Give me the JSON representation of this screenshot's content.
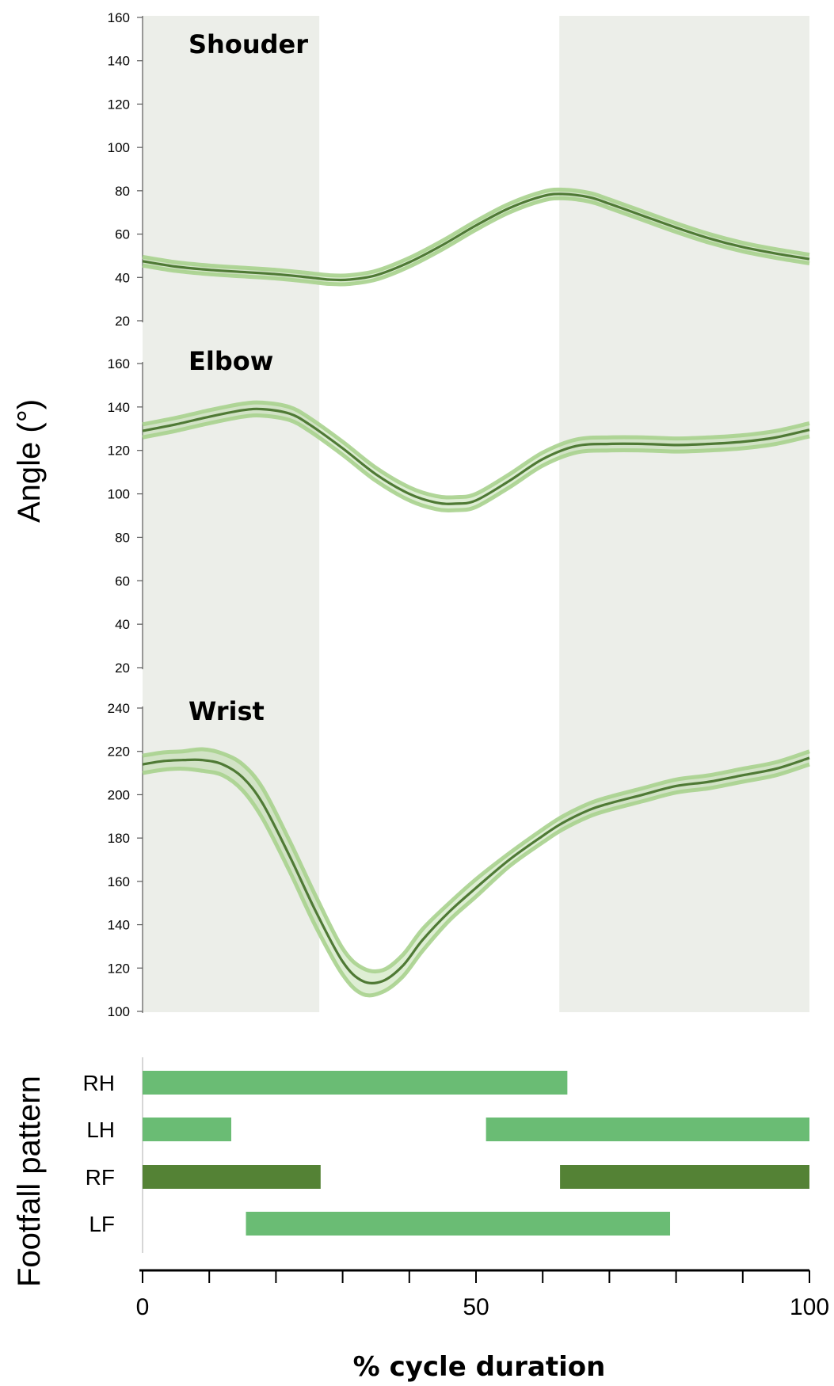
{
  "chart_data": {
    "type": "line",
    "xlabel": "% cycle duration",
    "ylabel": "Angle (°)",
    "xlim": [
      0,
      100
    ],
    "x_ticks": [
      "0",
      "50",
      "100"
    ],
    "shaded_phases": [
      [
        0,
        26.5
      ],
      [
        62.5,
        100
      ]
    ],
    "colors": {
      "line": "#4f7a35",
      "band": "#a9d18e",
      "shade": "#eceee9",
      "swing_dark": "#548235",
      "stance": "#6abc74"
    },
    "panels": [
      {
        "title": "Shouder",
        "ylim": [
          20,
          160
        ],
        "y_ticks": [
          "20",
          "40",
          "60",
          "80",
          "100",
          "120",
          "140",
          "160"
        ],
        "x": [
          0,
          5,
          10,
          15,
          20,
          25,
          28,
          31,
          35,
          40,
          45,
          50,
          55,
          60,
          63,
          67,
          70,
          75,
          80,
          85,
          90,
          95,
          100
        ],
        "mean": [
          47.5,
          45,
          43.5,
          42.5,
          41.5,
          40,
          39,
          39,
          41,
          47,
          55,
          64,
          72,
          77.5,
          78.5,
          77,
          74,
          68.5,
          63,
          58,
          54,
          51,
          48.5
        ],
        "sd": [
          2,
          2,
          2,
          2,
          2,
          2,
          2,
          2,
          2,
          2,
          2,
          2,
          2,
          2,
          2,
          2,
          2,
          2,
          2,
          2,
          2,
          2,
          2
        ]
      },
      {
        "title": "Elbow",
        "ylim": [
          20,
          160
        ],
        "y_ticks": [
          "20",
          "40",
          "60",
          "80",
          "100",
          "120",
          "140",
          "160"
        ],
        "x": [
          0,
          5,
          10,
          15,
          18,
          22,
          25,
          30,
          35,
          40,
          44,
          47,
          50,
          55,
          60,
          65,
          70,
          75,
          80,
          85,
          90,
          95,
          100
        ],
        "mean": [
          129,
          132,
          135.5,
          138.5,
          139,
          137,
          132,
          121,
          109,
          100,
          96,
          95.5,
          97,
          106,
          116,
          122,
          123,
          123,
          122.5,
          123,
          124,
          126,
          129.5
        ],
        "sd": [
          3,
          3,
          3,
          3,
          3,
          3,
          3,
          3,
          3,
          3,
          3,
          3,
          3,
          3,
          3,
          3,
          3,
          3,
          3,
          3,
          3,
          3,
          3
        ]
      },
      {
        "title": "Wrist",
        "ylim": [
          100,
          240
        ],
        "y_ticks": [
          "100",
          "120",
          "140",
          "160",
          "180",
          "200",
          "220",
          "240"
        ],
        "x": [
          0,
          3,
          6,
          9,
          12,
          15,
          18,
          22,
          26,
          30,
          33,
          36,
          39,
          42,
          46,
          50,
          55,
          60,
          63,
          67,
          70,
          75,
          80,
          85,
          90,
          95,
          100
        ],
        "mean": [
          214,
          215.5,
          216,
          216,
          214,
          208,
          196,
          172,
          146,
          123,
          114,
          114,
          121,
          133,
          146,
          157,
          170,
          181,
          187,
          193,
          196,
          200,
          204,
          206,
          209,
          212,
          217
        ],
        "sd": [
          4,
          4,
          4,
          5,
          5,
          6,
          7,
          7,
          7,
          6,
          6,
          5,
          5,
          5,
          4,
          4,
          3,
          3,
          3,
          3,
          3,
          3,
          3,
          3,
          3,
          3,
          3
        ]
      }
    ],
    "footfall": {
      "title": "Footfall pattern",
      "limbs": [
        {
          "label": "RH",
          "intervals": [
            [
              0,
              63.7
            ]
          ],
          "tone": "stance"
        },
        {
          "label": "LH",
          "intervals": [
            [
              0,
              13.3
            ],
            [
              51.5,
              100
            ]
          ],
          "tone": "stance"
        },
        {
          "label": "RF",
          "intervals": [
            [
              0,
              26.7
            ],
            [
              62.6,
              100
            ]
          ],
          "tone": "swing_dark"
        },
        {
          "label": "LF",
          "intervals": [
            [
              15.5,
              79.1
            ]
          ],
          "tone": "stance"
        }
      ]
    }
  }
}
